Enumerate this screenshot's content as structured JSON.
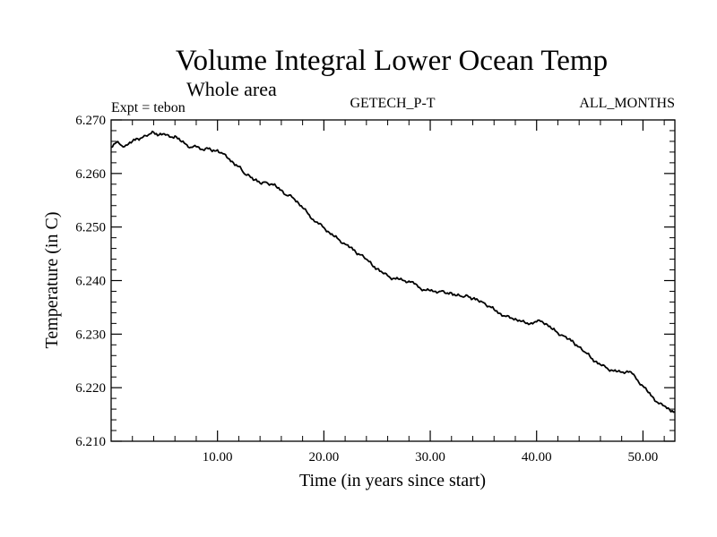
{
  "chart_data": {
    "type": "line",
    "title": "Volume Integral Lower Ocean Temp",
    "subtitle": "Whole area",
    "expt_label": "Expt = tebon",
    "center_label": "GETECH_P-T",
    "right_label": "ALL_MONTHS",
    "xlabel": "Time (in years since start)",
    "ylabel": "Temperature (in C)",
    "xlim": [
      0,
      53
    ],
    "ylim": [
      6.21,
      6.27
    ],
    "x_ticks": [
      10,
      20,
      30,
      40,
      50
    ],
    "x_tick_labels": [
      "10.00",
      "20.00",
      "30.00",
      "40.00",
      "50.00"
    ],
    "y_ticks": [
      6.21,
      6.22,
      6.23,
      6.24,
      6.25,
      6.26,
      6.27
    ],
    "y_tick_labels": [
      "6.210",
      "6.220",
      "6.230",
      "6.240",
      "6.250",
      "6.260",
      "6.270"
    ],
    "grid": false,
    "series": [
      {
        "name": "Temperature",
        "x": [
          0,
          0.5,
          1.0,
          1.5,
          2.0,
          2.5,
          3.0,
          3.5,
          4.0,
          4.5,
          5.0,
          5.5,
          6.0,
          6.5,
          7.0,
          7.5,
          8.0,
          8.5,
          9.0,
          9.5,
          10.0,
          10.5,
          11.0,
          11.5,
          12.0,
          12.5,
          13.0,
          13.5,
          14.0,
          14.5,
          15.0,
          15.5,
          16.0,
          16.5,
          17.0,
          17.5,
          18.0,
          18.5,
          19.0,
          19.5,
          20.0,
          20.5,
          21.0,
          21.5,
          22.0,
          22.5,
          23.0,
          23.5,
          24.0,
          24.5,
          25.0,
          25.5,
          26.0,
          26.5,
          27.0,
          27.5,
          28.0,
          28.5,
          29.0,
          29.5,
          30.0,
          30.5,
          31.0,
          31.5,
          32.0,
          32.5,
          33.0,
          33.5,
          34.0,
          34.5,
          35.0,
          35.5,
          36.0,
          36.5,
          37.0,
          37.5,
          38.0,
          38.5,
          39.0,
          39.5,
          40.0,
          40.5,
          41.0,
          41.5,
          42.0,
          42.5,
          43.0,
          43.5,
          44.0,
          44.5,
          45.0,
          45.5,
          46.0,
          46.5,
          47.0,
          47.5,
          48.0,
          48.5,
          49.0,
          49.5,
          50.0,
          50.5,
          51.0,
          51.5,
          52.0,
          52.5,
          53.0
        ],
        "y": [
          6.2649,
          6.2658,
          6.2652,
          6.2653,
          6.266,
          6.2665,
          6.2668,
          6.2672,
          6.2677,
          6.2672,
          6.2674,
          6.2668,
          6.267,
          6.2661,
          6.2655,
          6.2649,
          6.265,
          6.2645,
          6.2648,
          6.2641,
          6.2644,
          6.2637,
          6.2628,
          6.262,
          6.2613,
          6.26,
          6.2596,
          6.2588,
          6.2582,
          6.2584,
          6.258,
          6.2576,
          6.2569,
          6.2559,
          6.2556,
          6.2548,
          6.2536,
          6.2525,
          6.2514,
          6.2506,
          6.2499,
          6.249,
          6.2482,
          6.2475,
          6.2468,
          6.2462,
          6.2453,
          6.2448,
          6.244,
          6.243,
          6.2422,
          6.2415,
          6.2409,
          6.2404,
          6.2403,
          6.24,
          6.2399,
          6.2394,
          6.2387,
          6.2382,
          6.2381,
          6.238,
          6.238,
          6.2376,
          6.2377,
          6.2372,
          6.237,
          6.2372,
          6.2366,
          6.2363,
          6.2359,
          6.2352,
          6.2346,
          6.2339,
          6.2334,
          6.233,
          6.2329,
          6.2324,
          6.232,
          6.2321,
          6.2323,
          6.2324,
          6.2318,
          6.2309,
          6.2302,
          6.2297,
          6.2291,
          6.2284,
          6.2276,
          6.2267,
          6.2259,
          6.2249,
          6.2243,
          6.2238,
          6.2233,
          6.223,
          6.2229,
          6.2231,
          6.2226,
          6.2214,
          6.2203,
          6.2191,
          6.2181,
          6.217,
          6.2166,
          6.2159,
          6.2155
        ]
      }
    ]
  }
}
